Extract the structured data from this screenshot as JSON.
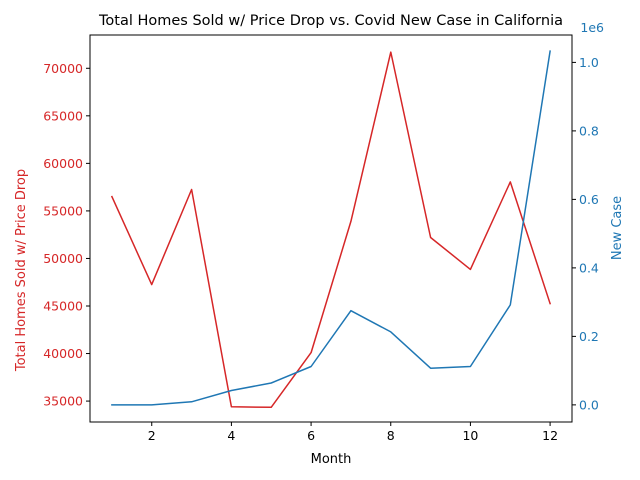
{
  "chart_data": {
    "type": "line",
    "title": "Total Homes Sold w/ Price Drop vs. Covid New Case in California",
    "xlabel": "Month",
    "x": [
      1,
      2,
      3,
      4,
      5,
      6,
      7,
      8,
      9,
      10,
      11,
      12
    ],
    "xticks": [
      "2",
      "4",
      "6",
      "8",
      "10",
      "12"
    ],
    "xlim": [
      0.45,
      12.55
    ],
    "left_axis": {
      "label": "Total Homes Sold w/ Price Drop",
      "color": "#d62728",
      "ylim": [
        32800,
        73500
      ],
      "ticks": [
        "35000",
        "40000",
        "45000",
        "50000",
        "55000",
        "60000",
        "65000",
        "70000"
      ]
    },
    "right_axis": {
      "label": "New Case",
      "color": "#1f77b4",
      "ylim": [
        -0.05,
        1.08
      ],
      "ticks": [
        "0.0",
        "0.2",
        "0.4",
        "0.6",
        "0.8",
        "1.0"
      ],
      "offset_text": "1e6"
    },
    "series": [
      {
        "name": "Total Homes Sold w/ Price Drop",
        "axis": "left",
        "color": "#d62728",
        "values": [
          56500,
          47250,
          57250,
          34400,
          34350,
          40100,
          53900,
          71700,
          52200,
          48850,
          58050,
          45250
        ]
      },
      {
        "name": "New Case",
        "axis": "right",
        "color": "#1f77b4",
        "values": [
          0.0,
          0.0,
          0.009,
          0.042,
          0.064,
          0.112,
          0.275,
          0.213,
          0.107,
          0.112,
          0.292,
          1.033
        ]
      }
    ]
  }
}
